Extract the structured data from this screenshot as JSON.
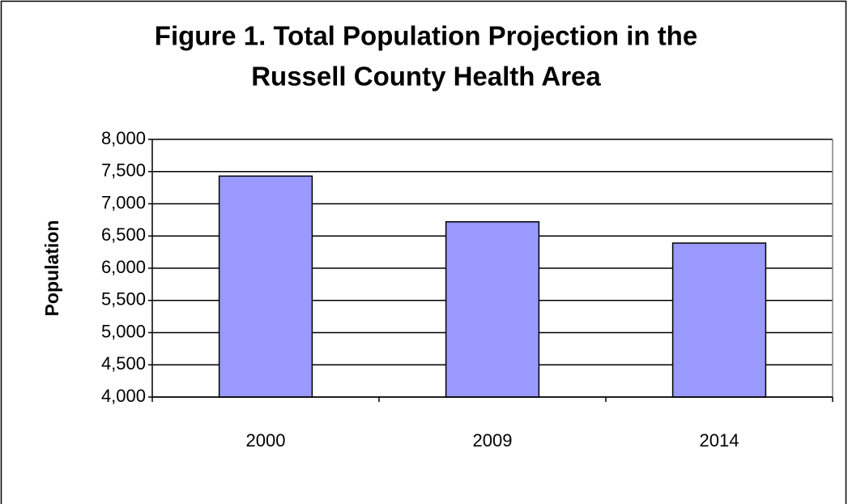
{
  "chart_data": {
    "type": "bar",
    "title": [
      "Figure 1. Total Population Projection in the",
      "Russell County Health Area"
    ],
    "y_label": "Population",
    "categories": [
      "2000",
      "2009",
      "2014"
    ],
    "values": [
      7430,
      6720,
      6390
    ],
    "color": "#9999ff",
    "ylim": [
      4000,
      8000
    ],
    "yticks": [
      {
        "value": 4000,
        "label": "4,000"
      },
      {
        "value": 4500,
        "label": "4,500"
      },
      {
        "value": 5000,
        "label": "5,000"
      },
      {
        "value": 5500,
        "label": "5,500"
      },
      {
        "value": 6000,
        "label": "6,000"
      },
      {
        "value": 6500,
        "label": "6,500"
      },
      {
        "value": 7000,
        "label": "7,000"
      },
      {
        "value": 7500,
        "label": "7,500"
      },
      {
        "value": 8000,
        "label": "8,000"
      }
    ],
    "grid": true
  }
}
